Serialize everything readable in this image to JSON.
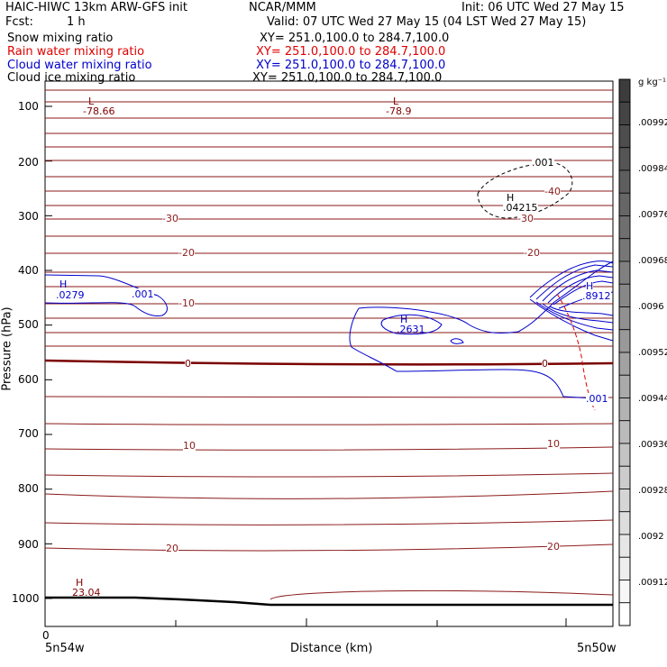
{
  "header": {
    "model": "HAIC-HIWC 13km ARW-GFS init",
    "org": "NCAR/MMM",
    "init": "Init: 06 UTC Wed 27 May 15",
    "fcst_label": "Fcst:",
    "fcst_value": "1 h",
    "valid": "Valid: 07 UTC Wed 27 May 15 (04 LST Wed 27 May 15)"
  },
  "fields": [
    {
      "name": "Snow mixing ratio",
      "xy": "XY= 251.0,100.0 to 284.7,100.0",
      "color": "#000000"
    },
    {
      "name": "Rain water mixing ratio",
      "xy": "XY= 251.0,100.0 to 284.7,100.0",
      "color": "#e00000"
    },
    {
      "name": "Cloud water mixing ratio",
      "xy": "XY= 251.0,100.0 to 284.7,100.0",
      "color": "#0000cc"
    },
    {
      "name": "Cloud ice mixing ratio",
      "xy": "XY= 251.0,100.0 to 284.7,100.0",
      "color": "#000000"
    }
  ],
  "colorbar": {
    "unit": "g kg⁻¹",
    "labels": [
      ".00992",
      ".00984",
      ".00976",
      ".00968",
      ".0096",
      ".00952",
      ".00944",
      ".00936",
      ".00928",
      ".0092",
      ".00912"
    ]
  },
  "chart_data": {
    "type": "contour",
    "ylabel": "Pressure (hPa)",
    "xlabel": "Distance (km)",
    "x_origin_label": "0",
    "x_left_label": "5n54w",
    "x_right_label": "5n50w",
    "y_ticks": [
      100,
      200,
      300,
      400,
      500,
      600,
      700,
      800,
      900,
      1000
    ],
    "temperature_contour_labels": [
      "-30",
      "-20",
      "-10",
      "0",
      "10",
      "20",
      "-40",
      "-30",
      "-20",
      "0",
      "10",
      "20"
    ],
    "extrema": [
      {
        "kind": "L",
        "value": "-78.66",
        "color": "#800000"
      },
      {
        "kind": "L",
        "value": "-78.9",
        "color": "#800000"
      },
      {
        "kind": "H",
        "value": ".0279",
        "color": "#0000cc"
      },
      {
        "kind": "H",
        "value": ".2631",
        "color": "#0000cc"
      },
      {
        "kind": "H",
        "value": ".8912",
        "color": "#0000cc"
      },
      {
        "kind": "H",
        "value": ".04215",
        "color": "#000000"
      },
      {
        "kind": "H",
        "value": "23.04",
        "color": "#800000"
      }
    ],
    "cloud_labels": [
      ".001",
      ".001",
      ".001"
    ]
  }
}
